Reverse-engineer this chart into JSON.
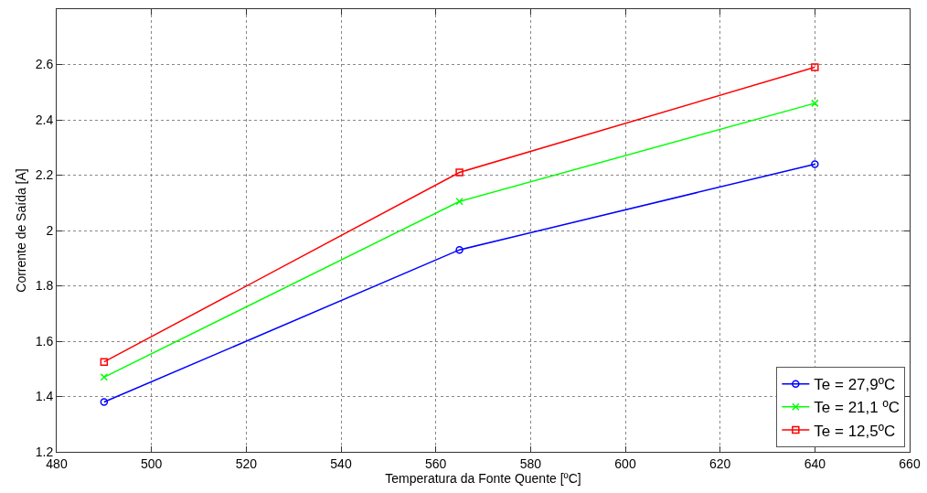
{
  "chart_data": {
    "type": "line",
    "xlabel": "Temperatura da Fonte Quente [ºC]",
    "ylabel": "Corrente de Saída [A]",
    "x": [
      490,
      565,
      640
    ],
    "series": [
      {
        "name": "Te = 27,9ºC",
        "color": "#0000ff",
        "marker": "circle",
        "values": [
          1.38,
          1.93,
          2.24
        ]
      },
      {
        "name": "Te = 21,1 ºC",
        "color": "#00ff00",
        "marker": "cross",
        "values": [
          1.47,
          2.105,
          2.46
        ]
      },
      {
        "name": "Te = 12,5ºC",
        "color": "#ff0000",
        "marker": "square",
        "values": [
          1.525,
          2.21,
          2.59
        ]
      }
    ],
    "xlim": [
      480,
      660
    ],
    "xticks": [
      480,
      500,
      520,
      540,
      560,
      580,
      600,
      620,
      640,
      660
    ],
    "ylim": [
      1.2,
      2.8
    ],
    "yticks": [
      1.2,
      1.4,
      1.6,
      1.8,
      2,
      2.2,
      2.4,
      2.6
    ],
    "grid": true,
    "legend": "bottom right",
    "line_style": "solid"
  }
}
